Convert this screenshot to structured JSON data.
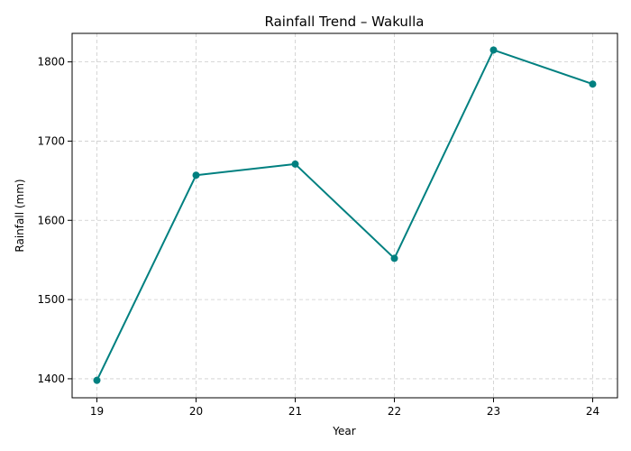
{
  "chart_data": {
    "type": "line",
    "title": "Rainfall Trend – Wakulla",
    "xlabel": "Year",
    "ylabel": "Rainfall (mm)",
    "x": [
      "19",
      "20",
      "21",
      "22",
      "23",
      "24"
    ],
    "series": [
      {
        "values": [
          1398,
          1657,
          1671,
          1552,
          1815,
          1772
        ]
      }
    ],
    "yticks": [
      1400,
      1500,
      1600,
      1700,
      1800
    ],
    "ylim": [
      1376,
      1836
    ],
    "grid": true,
    "marker": "circle",
    "color": "#008080"
  }
}
